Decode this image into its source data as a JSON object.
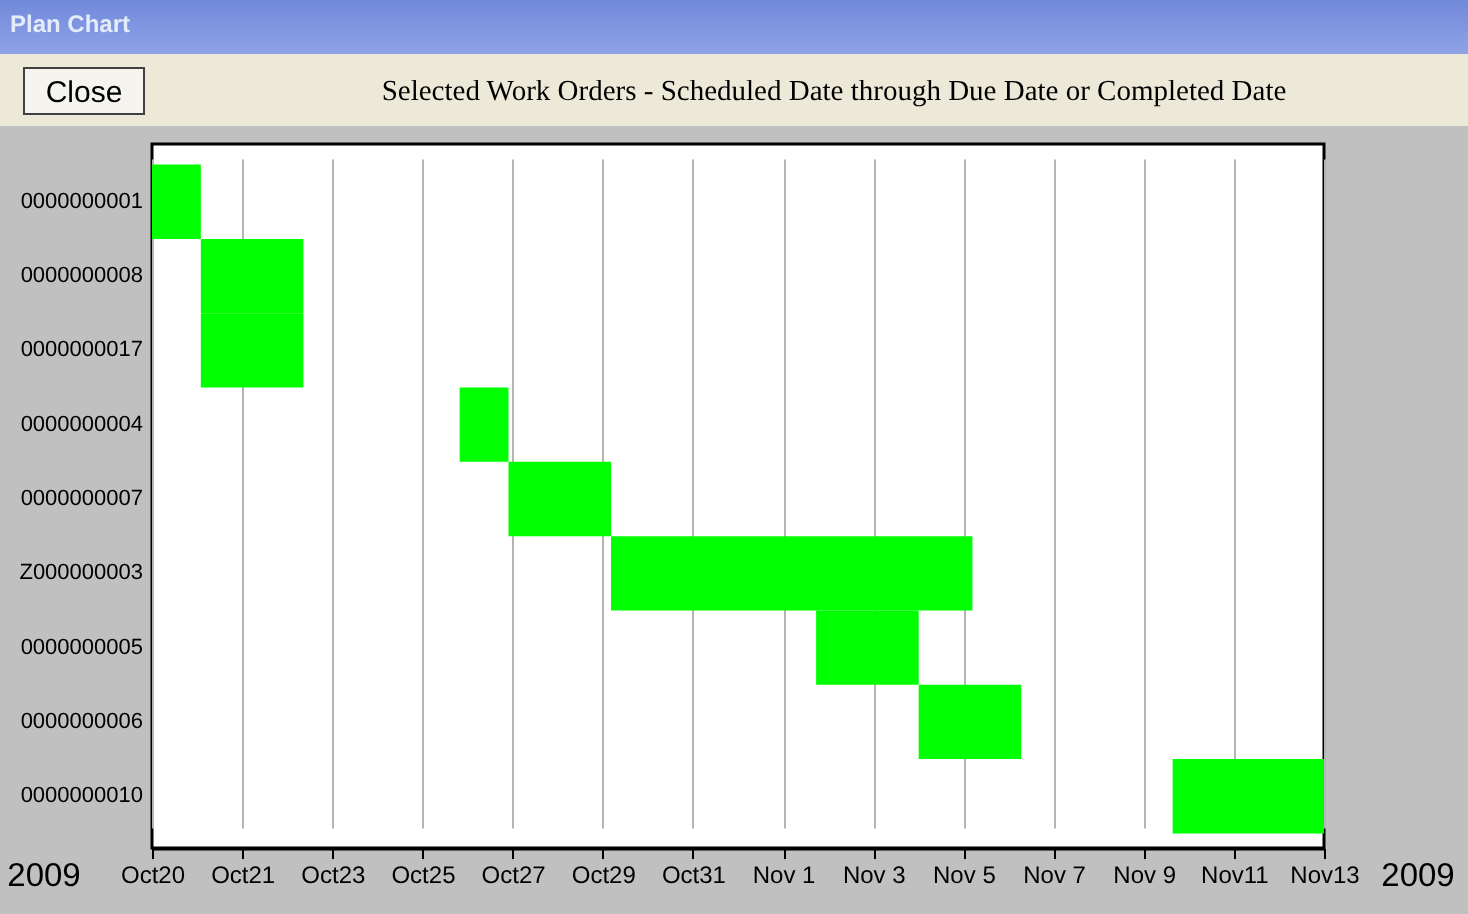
{
  "chart_data": {
    "type": "bar",
    "orientation": "horizontal",
    "title": "Selected Work Orders - Scheduled Date through Due Date or Completed Date",
    "annotations": [
      "Plan Chart",
      "Close",
      "2009",
      "2009"
    ],
    "categories": [
      "0000000001",
      "0000000008",
      "0000000017",
      "0000000004",
      "0000000007",
      "Z000000003",
      "0000000005",
      "0000000006",
      "0000000010"
    ],
    "base": [
      14537.0,
      14538.0,
      14538.0,
      14543.3,
      14544.3,
      14546.4,
      14550.6,
      14552.7,
      14557.9
    ],
    "values": [
      1.0,
      2.1,
      2.1,
      1.0,
      2.1,
      7.4,
      2.1,
      2.1,
      3.1
    ],
    "color": "#00ff00",
    "xlim": [
      "2009-10-20",
      "2009-11-13"
    ],
    "xticks": [
      {
        "value": "2009-10-20",
        "label": "Oct20"
      },
      {
        "value": "2009-10-21T20:18",
        "label": "Oct21"
      },
      {
        "value": "2009-10-23T16:37",
        "label": "Oct23"
      },
      {
        "value": "2009-10-25T12:55",
        "label": "Oct25"
      },
      {
        "value": "2009-10-27T09:14",
        "label": "Oct27"
      },
      {
        "value": "2009-10-29T05:32",
        "label": "Oct29"
      },
      {
        "value": "2009-10-31T01:51",
        "label": "Oct31"
      },
      {
        "value": "2009-11-01T22:09",
        "label": "Nov 1"
      },
      {
        "value": "2009-11-03T18:28",
        "label": "Nov 3"
      },
      {
        "value": "2009-11-05T14:46",
        "label": "Nov 5"
      },
      {
        "value": "2009-11-07T11:05",
        "label": "Nov 7"
      },
      {
        "value": "2009-11-09T07:23",
        "label": "Nov 9"
      },
      {
        "value": "2009-11-11T03:42",
        "label": "Nov11"
      },
      {
        "value": "2009-11-13",
        "label": "Nov13"
      }
    ],
    "grid": "x"
  }
}
